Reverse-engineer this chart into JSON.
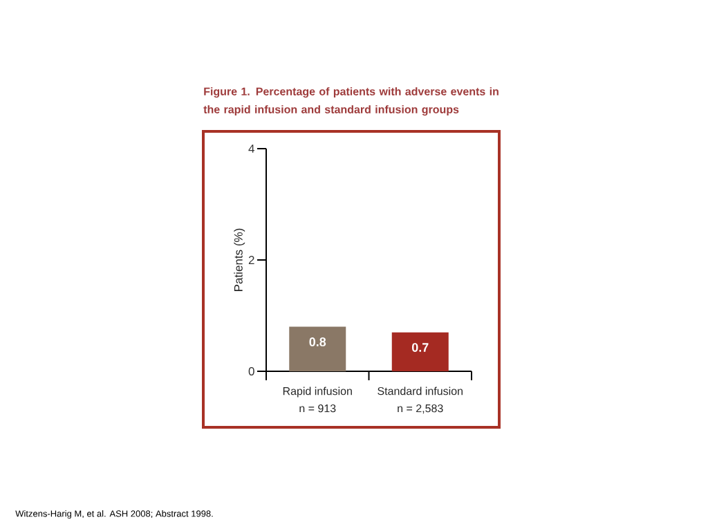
{
  "chart_data": {
    "type": "bar",
    "title": "Figure 1. Percentage of patients with adverse events in the rapid infusion and standard infusion groups",
    "ylabel": "Patients (%)",
    "categories": [
      "Rapid infusion\nn = 913",
      "Standard infusion\nn = 2,583"
    ],
    "values": [
      0.8,
      0.7
    ],
    "colors": [
      "#8a7866",
      "#a52a22"
    ],
    "ylim": [
      0,
      4
    ],
    "yticks": [
      0,
      2,
      4
    ],
    "data_labels": true,
    "annotations": [
      "Witzens-Harig M, et al. ASH 2008; Abstract 1998."
    ]
  }
}
